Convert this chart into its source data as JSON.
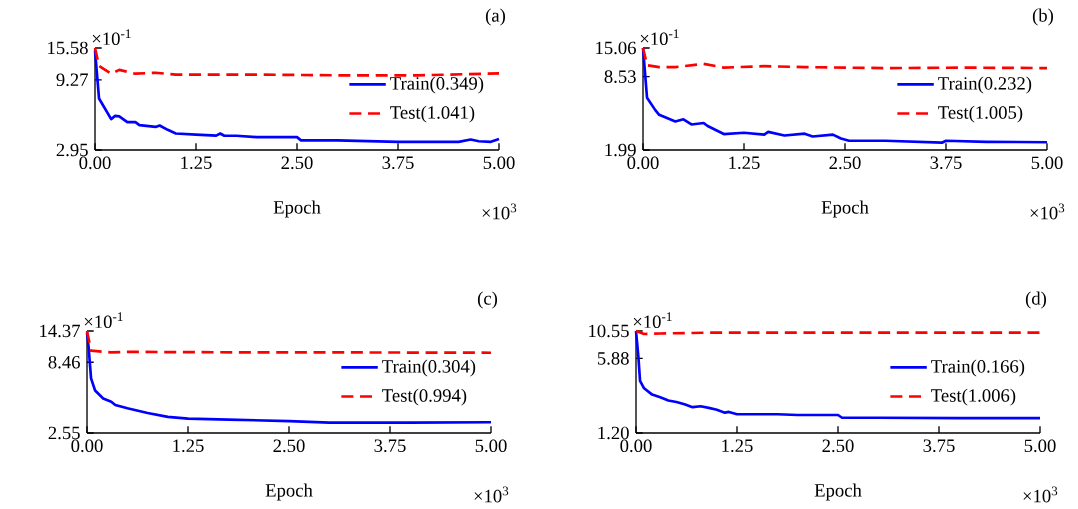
{
  "chart_data": [
    {
      "type": "line",
      "title": "(a)",
      "xlabel": "Epoch",
      "annotations": [
        "×10$^{-1}$",
        "×10$^{3}$"
      ],
      "log": "y",
      "legend": "right",
      "xlim": [
        0,
        5
      ],
      "ylim": [
        2.95,
        15.58
      ],
      "xticks": [
        {
          "value": 0,
          "label": "0.00"
        },
        {
          "value": 1.25,
          "label": "1.25"
        },
        {
          "value": 2.5,
          "label": "2.50"
        },
        {
          "value": 3.75,
          "label": "3.75"
        },
        {
          "value": 5,
          "label": "5.00"
        }
      ],
      "yticks": [
        15.58,
        9.27,
        2.95
      ],
      "series": [
        {
          "name": "Train(0.349)",
          "color": "#0000ff",
          "line_style": "solid",
          "x": [
            0,
            0.05,
            0.2,
            0.25,
            0.3,
            0.4,
            0.5,
            0.55,
            0.75,
            0.8,
            0.9,
            1.0,
            1.25,
            1.5,
            1.55,
            1.6,
            1.75,
            2.0,
            2.5,
            2.55,
            3.0,
            3.75,
            4.5,
            4.65,
            4.75,
            4.9,
            5.0
          ],
          "values": [
            15.0,
            6.83,
            4.88,
            5.15,
            5.1,
            4.65,
            4.65,
            4.43,
            4.3,
            4.4,
            4.1,
            3.86,
            3.79,
            3.73,
            3.86,
            3.72,
            3.72,
            3.64,
            3.64,
            3.45,
            3.45,
            3.37,
            3.37,
            3.5,
            3.4,
            3.37,
            3.53
          ]
        },
        {
          "name": "Test(1.041)",
          "color": "#ff0000",
          "line_style": "dashed",
          "x": [
            0,
            0.05,
            0.2,
            0.3,
            0.5,
            0.75,
            1.0,
            2.0,
            3.0,
            4.0,
            5.0
          ],
          "values": [
            15.58,
            11.65,
            10.24,
            10.9,
            10.24,
            10.4,
            10.1,
            10.1,
            9.97,
            9.97,
            10.3
          ]
        }
      ]
    },
    {
      "type": "line",
      "title": "(b)",
      "xlabel": "Epoch",
      "annotations": [
        "×10$^{-1}$",
        "×10$^{3}$"
      ],
      "log": "y",
      "legend": "right",
      "xlim": [
        0,
        5
      ],
      "ylim": [
        1.99,
        15.06
      ],
      "xticks": [
        {
          "value": 0,
          "label": "0.00"
        },
        {
          "value": 1.25,
          "label": "1.25"
        },
        {
          "value": 2.5,
          "label": "2.50"
        },
        {
          "value": 3.75,
          "label": "3.75"
        },
        {
          "value": 5,
          "label": "5.00"
        }
      ],
      "yticks": [
        15.06,
        8.53,
        1.99
      ],
      "series": [
        {
          "name": "Train(0.232)",
          "color": "#0000ff",
          "line_style": "solid",
          "x": [
            0,
            0.05,
            0.15,
            0.2,
            0.4,
            0.5,
            0.6,
            0.75,
            0.8,
            1.0,
            1.25,
            1.5,
            1.55,
            1.75,
            2.0,
            2.1,
            2.35,
            2.45,
            2.55,
            3.0,
            3.7,
            3.75,
            4.25,
            5.0
          ],
          "values": [
            15.06,
            5.6,
            4.41,
            4.0,
            3.5,
            3.66,
            3.3,
            3.4,
            3.2,
            2.73,
            2.8,
            2.7,
            2.85,
            2.65,
            2.75,
            2.6,
            2.7,
            2.5,
            2.39,
            2.39,
            2.3,
            2.39,
            2.34,
            2.32
          ]
        },
        {
          "name": "Test(1.005)",
          "color": "#ff0000",
          "line_style": "dashed",
          "x": [
            0,
            0.05,
            0.2,
            0.4,
            0.75,
            1.0,
            1.5,
            2.0,
            2.5,
            3.0,
            4.0,
            5.0
          ],
          "values": [
            15.06,
            10.7,
            10.3,
            10.3,
            11.0,
            10.2,
            10.5,
            10.3,
            10.2,
            10.1,
            10.2,
            10.1
          ]
        }
      ]
    },
    {
      "type": "line",
      "title": "(c)",
      "xlabel": "Epoch",
      "annotations": [
        "×10$^{-1}$",
        "×10$^{3}$"
      ],
      "log": "y",
      "legend": "right",
      "xlim": [
        0,
        5
      ],
      "ylim": [
        2.55,
        14.37
      ],
      "xticks": [
        {
          "value": 0,
          "label": "0.00"
        },
        {
          "value": 1.25,
          "label": "1.25"
        },
        {
          "value": 2.5,
          "label": "2.50"
        },
        {
          "value": 3.75,
          "label": "3.75"
        },
        {
          "value": 5,
          "label": "5.00"
        }
      ],
      "yticks": [
        14.37,
        8.46,
        2.55
      ],
      "series": [
        {
          "name": "Train(0.304)",
          "color": "#0000ff",
          "line_style": "solid",
          "x": [
            0,
            0.02,
            0.05,
            0.1,
            0.2,
            0.3,
            0.35,
            0.5,
            0.75,
            1.0,
            1.25,
            1.75,
            2.5,
            3.0,
            4.0,
            5.0
          ],
          "values": [
            14.0,
            10.9,
            6.44,
            5.24,
            4.58,
            4.33,
            4.1,
            3.88,
            3.58,
            3.35,
            3.25,
            3.2,
            3.12,
            3.04,
            3.04,
            3.06
          ]
        },
        {
          "name": "Test(0.994)",
          "color": "#ff0000",
          "line_style": "dashed",
          "x": [
            0,
            0.05,
            0.3,
            0.5,
            1.0,
            2.0,
            3.0,
            4.0,
            5.0
          ],
          "values": [
            14.37,
            10.3,
            9.99,
            10.1,
            10.05,
            10.0,
            10.0,
            9.97,
            9.94
          ]
        }
      ]
    },
    {
      "type": "line",
      "title": "(d)",
      "xlabel": "Epoch",
      "annotations": [
        "×10$^{-1}$",
        "×10$^{3}$"
      ],
      "log": "y",
      "legend": "right",
      "xlim": [
        0,
        5
      ],
      "ylim": [
        1.2,
        10.55
      ],
      "xticks": [
        {
          "value": 0,
          "label": "0.00"
        },
        {
          "value": 1.25,
          "label": "1.25"
        },
        {
          "value": 2.5,
          "label": "2.50"
        },
        {
          "value": 3.75,
          "label": "3.75"
        },
        {
          "value": 5,
          "label": "5.00"
        }
      ],
      "yticks": [
        10.55,
        5.88,
        {
          "value": 1.2,
          "label": "1.20"
        }
      ],
      "series": [
        {
          "name": "Train(0.166)",
          "color": "#0000ff",
          "line_style": "solid",
          "x": [
            0,
            0.03,
            0.05,
            0.1,
            0.2,
            0.3,
            0.4,
            0.5,
            0.6,
            0.7,
            0.8,
            0.9,
            1.0,
            1.1,
            1.15,
            1.25,
            1.75,
            2.0,
            2.25,
            2.5,
            2.55,
            3.0,
            4.0,
            5.0
          ],
          "values": [
            10.55,
            6.0,
            3.65,
            3.11,
            2.72,
            2.57,
            2.4,
            2.32,
            2.21,
            2.08,
            2.12,
            2.05,
            1.97,
            1.85,
            1.88,
            1.79,
            1.79,
            1.76,
            1.76,
            1.76,
            1.66,
            1.66,
            1.65,
            1.65
          ]
        },
        {
          "name": "Test(1.006)",
          "color": "#ff0000",
          "line_style": "dashed",
          "x": [
            0,
            0.1,
            0.3,
            1.0,
            3.0,
            5.0
          ],
          "values": [
            10.55,
            9.9,
            10.0,
            10.2,
            10.2,
            10.2
          ]
        }
      ]
    }
  ]
}
